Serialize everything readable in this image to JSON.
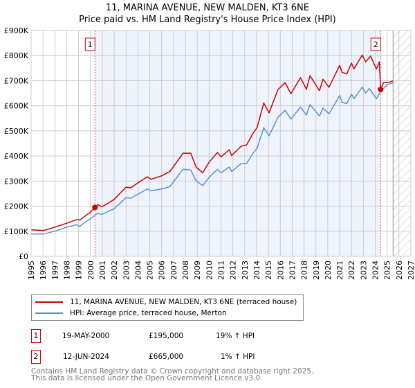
{
  "title_line1": "11, MARINA AVENUE, NEW MALDEN, KT3 6NE",
  "title_line2": "Price paid vs. HM Land Registry's House Price Index (HPI)",
  "chart_data": {
    "type": "line",
    "title": "11, MARINA AVENUE, NEW MALDEN, KT3 6NE — Price paid vs. HM Land Registry's House Price Index (HPI)",
    "xlim": [
      1995,
      2027
    ],
    "ylim": [
      0,
      900000
    ],
    "x_ticks": [
      "1995",
      "1996",
      "1997",
      "1998",
      "1999",
      "2000",
      "2001",
      "2002",
      "2003",
      "2004",
      "2005",
      "2006",
      "2007",
      "2008",
      "2009",
      "2010",
      "2011",
      "2012",
      "2013",
      "2014",
      "2015",
      "2016",
      "2017",
      "2018",
      "2019",
      "2020",
      "2021",
      "2022",
      "2023",
      "2024",
      "2025",
      "2026",
      "2027"
    ],
    "y_ticks": [
      0,
      100000,
      200000,
      300000,
      400000,
      500000,
      600000,
      700000,
      800000,
      900000
    ],
    "y_tick_labels": [
      "£0",
      "£100K",
      "£200K",
      "£300K",
      "£400K",
      "£500K",
      "£600K",
      "£700K",
      "£800K",
      "£900K"
    ],
    "grid": true,
    "series": [
      {
        "name": "11, MARINA AVENUE, NEW MALDEN, KT3 6NE (terraced house)",
        "color": "#cc0000",
        "x": [
          1995,
          1996.05,
          1997.05,
          1998.06,
          1998.84,
          1999.07,
          1999.96,
          2000.38,
          2000.63,
          2000.97,
          2002,
          2003,
          2003.4,
          2004.1,
          2004.8,
          2005.1,
          2006,
          2006.7,
          2007.8,
          2008.45,
          2008.9,
          2009.46,
          2010,
          2010.7,
          2011,
          2011.7,
          2011.9,
          2012.7,
          2013.15,
          2013.7,
          2014.04,
          2014.6,
          2015.05,
          2015.8,
          2016.4,
          2016.9,
          2017.7,
          2018.2,
          2018.5,
          2019.3,
          2019.6,
          2020.1,
          2021,
          2021.2,
          2021.6,
          2022,
          2022.2,
          2022.9,
          2023.2,
          2023.6,
          2024.1,
          2024.35,
          2024.45,
          2024.7,
          2025.05,
          2025.5
        ],
        "y": [
          106,
          103,
          117,
          133,
          147,
          144,
          175,
          195,
          206,
          197,
          227,
          276,
          273,
          296,
          317,
          307,
          321,
          338,
          411,
          411,
          356,
          333,
          375,
          414,
          396,
          425,
          402,
          439,
          444,
          490,
          513,
          611,
          572,
          664,
          692,
          648,
          712,
          666,
          720,
          660,
          706,
          674,
          761,
          733,
          727,
          770,
          747,
          802,
          775,
          798,
          747,
          775,
          665,
          692,
          692,
          699
        ]
      },
      {
        "name": "HPI: Average price, terraced house, Merton",
        "color": "#5b8fd4",
        "x": [
          1995,
          1996.05,
          1997.05,
          1998.06,
          1998.84,
          1999.07,
          1999.96,
          2000.6,
          2000.97,
          2002,
          2003,
          2003.4,
          2004.1,
          2004.8,
          2005.1,
          2006,
          2006.7,
          2007.8,
          2008.45,
          2008.9,
          2009.46,
          2010,
          2010.7,
          2011,
          2011.7,
          2011.9,
          2012.7,
          2013.15,
          2013.7,
          2014.04,
          2014.6,
          2015.05,
          2015.8,
          2016.4,
          2016.9,
          2017.7,
          2018.2,
          2018.5,
          2019.3,
          2019.6,
          2020.1,
          2021,
          2021.2,
          2021.6,
          2022,
          2022.2,
          2022.9,
          2023.2,
          2023.5,
          2024.1,
          2024.5,
          2025,
          2025.5
        ],
        "y": [
          89,
          89,
          101,
          117,
          126,
          119,
          149,
          172,
          167,
          190,
          234,
          232,
          250,
          269,
          261,
          269,
          278,
          347,
          344,
          301,
          282,
          315,
          347,
          333,
          356,
          338,
          370,
          370,
          411,
          430,
          513,
          480,
          554,
          582,
          547,
          595,
          563,
          605,
          559,
          591,
          568,
          641,
          614,
          609,
          646,
          628,
          674,
          651,
          669,
          628,
          660,
          683,
          692
        ]
      }
    ],
    "y_units": "thousands GBP",
    "sales": [
      {
        "label": "1",
        "x": 2000.38,
        "y": 195
      },
      {
        "label": "2",
        "x": 2024.45,
        "y": 665
      }
    ],
    "shaded_range": [
      2000.38,
      2024.45
    ],
    "forecast_hatched_from": 2025.5,
    "legend_placement": "below"
  },
  "legend": [
    {
      "label": "11, MARINA AVENUE, NEW MALDEN, KT3 6NE (terraced house)",
      "color": "#cc0000"
    },
    {
      "label": "HPI: Average price, terraced house, Merton",
      "color": "#5b8fd4"
    }
  ],
  "transactions": [
    {
      "num": "1",
      "date": "19-MAY-2000",
      "price": "£195,000",
      "hpi": "19% ↑ HPI"
    },
    {
      "num": "2",
      "date": "12-JUN-2024",
      "price": "£665,000",
      "hpi": "1% ↑ HPI"
    }
  ],
  "footer_line1": "Contains HM Land Registry data © Crown copyright and database right 2025.",
  "footer_line2": "This data is licensed under the Open Government Licence v3.0."
}
